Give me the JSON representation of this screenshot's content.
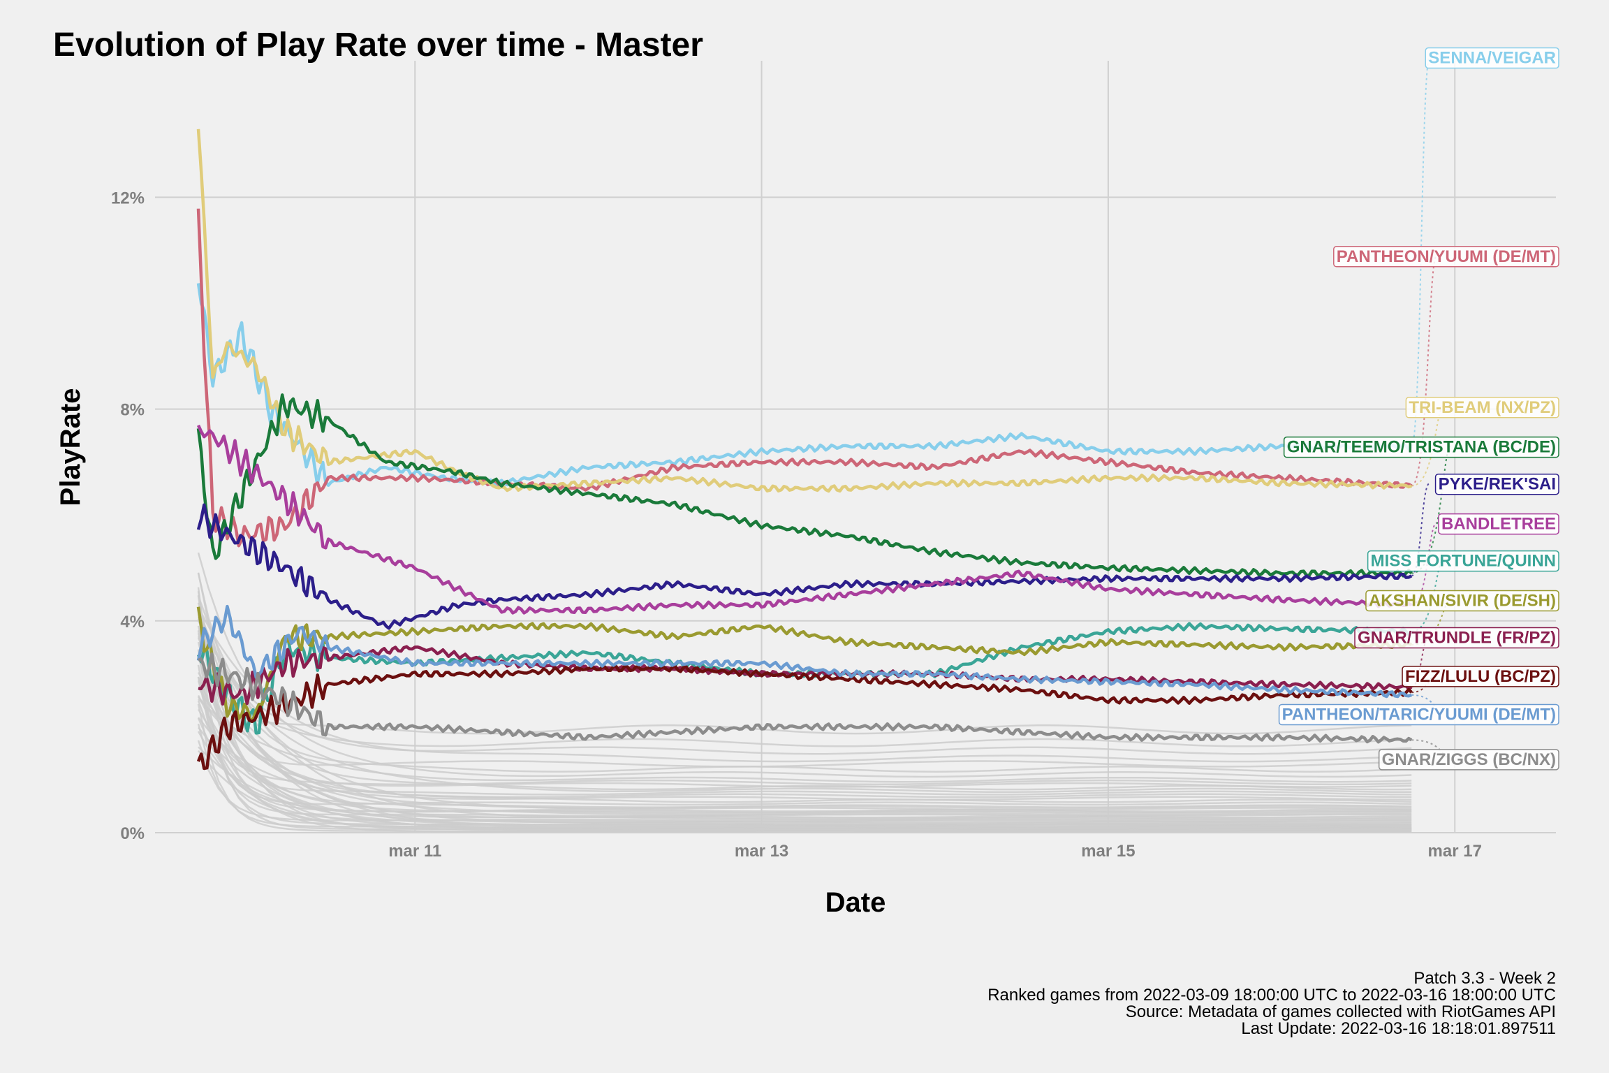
{
  "chart_data": {
    "type": "line",
    "title": "Evolution of Play Rate over time - Master",
    "xlabel": "Date",
    "ylabel": "PlayRate",
    "x_ticks": [
      "mar 11",
      "mar 13",
      "mar 15",
      "mar 17"
    ],
    "y_ticks": [
      "0%",
      "4%",
      "8%",
      "12%"
    ],
    "xlim": [
      "2022-03-09 12:00",
      "2022-03-17 14:00"
    ],
    "ylim": [
      0,
      15
    ],
    "grid": true,
    "legend": "direct-labels-right",
    "highlight_series": [
      {
        "name": "SENNA/VEIGAR",
        "color": "#87ceeb",
        "label_y": 14.65,
        "points": [
          [
            "2022-03-09 18:00",
            10.5
          ],
          [
            "2022-03-09 20:00",
            8.6
          ],
          [
            "2022-03-10 00:00",
            9.4
          ],
          [
            "2022-03-10 04:00",
            8.0
          ],
          [
            "2022-03-10 12:00",
            6.6
          ],
          [
            "2022-03-10 20:00",
            6.9
          ],
          [
            "2022-03-11 04:00",
            6.7
          ],
          [
            "2022-03-11 12:00",
            6.6
          ],
          [
            "2022-03-12 00:00",
            6.9
          ],
          [
            "2022-03-12 12:00",
            7.0
          ],
          [
            "2022-03-13 00:00",
            7.2
          ],
          [
            "2022-03-13 12:00",
            7.3
          ],
          [
            "2022-03-14 00:00",
            7.3
          ],
          [
            "2022-03-14 12:00",
            7.5
          ],
          [
            "2022-03-15 00:00",
            7.2
          ],
          [
            "2022-03-15 12:00",
            7.2
          ],
          [
            "2022-03-16 00:00",
            7.3
          ],
          [
            "2022-03-16 18:00",
            7.3
          ]
        ]
      },
      {
        "name": "PANTHEON/YUUMI (DE/MT)",
        "color": "#cd6677",
        "label_y": 10.9,
        "points": [
          [
            "2022-03-09 18:00",
            11.5
          ],
          [
            "2022-03-09 20:00",
            6.0
          ],
          [
            "2022-03-10 00:00",
            5.6
          ],
          [
            "2022-03-10 06:00",
            5.8
          ],
          [
            "2022-03-10 12:00",
            6.7
          ],
          [
            "2022-03-11 00:00",
            6.7
          ],
          [
            "2022-03-11 12:00",
            6.6
          ],
          [
            "2022-03-12 00:00",
            6.5
          ],
          [
            "2022-03-12 12:00",
            6.9
          ],
          [
            "2022-03-13 00:00",
            7.0
          ],
          [
            "2022-03-13 12:00",
            7.0
          ],
          [
            "2022-03-14 00:00",
            6.9
          ],
          [
            "2022-03-14 12:00",
            7.2
          ],
          [
            "2022-03-15 00:00",
            7.0
          ],
          [
            "2022-03-15 12:00",
            6.8
          ],
          [
            "2022-03-16 00:00",
            6.7
          ],
          [
            "2022-03-16 18:00",
            6.55
          ]
        ]
      },
      {
        "name": "TRI-BEAM (NX/PZ)",
        "color": "#e0cc7a",
        "label_y": 8.05,
        "points": [
          [
            "2022-03-09 18:00",
            13.4
          ],
          [
            "2022-03-09 20:00",
            8.6
          ],
          [
            "2022-03-09 22:00",
            9.2
          ],
          [
            "2022-03-10 02:00",
            8.8
          ],
          [
            "2022-03-10 06:00",
            7.6
          ],
          [
            "2022-03-10 12:00",
            7.0
          ],
          [
            "2022-03-11 00:00",
            7.2
          ],
          [
            "2022-03-11 06:00",
            6.8
          ],
          [
            "2022-03-11 12:00",
            6.5
          ],
          [
            "2022-03-12 00:00",
            6.6
          ],
          [
            "2022-03-12 12:00",
            6.7
          ],
          [
            "2022-03-13 00:00",
            6.5
          ],
          [
            "2022-03-13 12:00",
            6.5
          ],
          [
            "2022-03-14 00:00",
            6.6
          ],
          [
            "2022-03-14 12:00",
            6.6
          ],
          [
            "2022-03-15 00:00",
            6.7
          ],
          [
            "2022-03-15 12:00",
            6.7
          ],
          [
            "2022-03-16 00:00",
            6.6
          ],
          [
            "2022-03-16 18:00",
            6.55
          ]
        ]
      },
      {
        "name": "GNAR/TEEMO/TRISTANA (BC/DE)",
        "color": "#1a7a3a",
        "label_y": 7.3,
        "points": [
          [
            "2022-03-09 18:00",
            7.5
          ],
          [
            "2022-03-09 20:00",
            5.2
          ],
          [
            "2022-03-10 00:00",
            6.4
          ],
          [
            "2022-03-10 06:00",
            8.1
          ],
          [
            "2022-03-10 12:00",
            7.8
          ],
          [
            "2022-03-10 20:00",
            7.0
          ],
          [
            "2022-03-11 06:00",
            6.8
          ],
          [
            "2022-03-11 12:00",
            6.6
          ],
          [
            "2022-03-12 00:00",
            6.4
          ],
          [
            "2022-03-12 12:00",
            6.2
          ],
          [
            "2022-03-13 00:00",
            5.8
          ],
          [
            "2022-03-13 12:00",
            5.6
          ],
          [
            "2022-03-14 00:00",
            5.3
          ],
          [
            "2022-03-14 12:00",
            5.1
          ],
          [
            "2022-03-15 00:00",
            5.0
          ],
          [
            "2022-03-15 12:00",
            4.95
          ],
          [
            "2022-03-16 00:00",
            4.9
          ],
          [
            "2022-03-16 18:00",
            4.9
          ]
        ]
      },
      {
        "name": "PYKE/REK'SAI",
        "color": "#2c1e8a",
        "label_y": 6.6,
        "points": [
          [
            "2022-03-09 18:00",
            6.0
          ],
          [
            "2022-03-09 20:00",
            5.8
          ],
          [
            "2022-03-10 06:00",
            5.0
          ],
          [
            "2022-03-10 12:00",
            4.4
          ],
          [
            "2022-03-10 20:00",
            3.9
          ],
          [
            "2022-03-11 06:00",
            4.3
          ],
          [
            "2022-03-11 12:00",
            4.4
          ],
          [
            "2022-03-12 00:00",
            4.5
          ],
          [
            "2022-03-12 12:00",
            4.7
          ],
          [
            "2022-03-13 00:00",
            4.5
          ],
          [
            "2022-03-13 12:00",
            4.7
          ],
          [
            "2022-03-14 00:00",
            4.7
          ],
          [
            "2022-03-14 12:00",
            4.75
          ],
          [
            "2022-03-15 00:00",
            4.8
          ],
          [
            "2022-03-15 12:00",
            4.8
          ],
          [
            "2022-03-16 00:00",
            4.8
          ],
          [
            "2022-03-16 18:00",
            4.85
          ]
        ]
      },
      {
        "name": "BANDLETREE",
        "color": "#a83e9c",
        "label_y": 5.85,
        "points": [
          [
            "2022-03-09 18:00",
            7.6
          ],
          [
            "2022-03-09 20:00",
            7.5
          ],
          [
            "2022-03-10 06:00",
            6.3
          ],
          [
            "2022-03-10 12:00",
            5.5
          ],
          [
            "2022-03-11 00:00",
            5.0
          ],
          [
            "2022-03-11 12:00",
            4.2
          ],
          [
            "2022-03-12 00:00",
            4.2
          ],
          [
            "2022-03-12 12:00",
            4.3
          ],
          [
            "2022-03-13 00:00",
            4.3
          ],
          [
            "2022-03-13 12:00",
            4.5
          ],
          [
            "2022-03-14 00:00",
            4.7
          ],
          [
            "2022-03-14 12:00",
            4.9
          ],
          [
            "2022-03-15 00:00",
            4.6
          ],
          [
            "2022-03-15 12:00",
            4.5
          ],
          [
            "2022-03-16 00:00",
            4.4
          ],
          [
            "2022-03-16 18:00",
            4.3
          ]
        ]
      },
      {
        "name": "MISS FORTUNE/QUINN",
        "color": "#3aa597",
        "label_y": 5.15,
        "points": [
          [
            "2022-03-09 18:00",
            3.5
          ],
          [
            "2022-03-09 22:00",
            2.6
          ],
          [
            "2022-03-10 02:00",
            2.0
          ],
          [
            "2022-03-10 06:00",
            3.5
          ],
          [
            "2022-03-10 12:00",
            3.3
          ],
          [
            "2022-03-11 00:00",
            3.2
          ],
          [
            "2022-03-11 12:00",
            3.3
          ],
          [
            "2022-03-12 00:00",
            3.4
          ],
          [
            "2022-03-12 12:00",
            3.2
          ],
          [
            "2022-03-13 00:00",
            3.0
          ],
          [
            "2022-03-13 12:00",
            3.0
          ],
          [
            "2022-03-14 00:00",
            3.0
          ],
          [
            "2022-03-14 12:00",
            3.5
          ],
          [
            "2022-03-15 00:00",
            3.8
          ],
          [
            "2022-03-15 12:00",
            3.9
          ],
          [
            "2022-03-16 00:00",
            3.85
          ],
          [
            "2022-03-16 18:00",
            3.8
          ]
        ]
      },
      {
        "name": "AKSHAN/SIVIR (DE/SH)",
        "color": "#9a9a30",
        "label_y": 4.4,
        "points": [
          [
            "2022-03-09 18:00",
            4.0
          ],
          [
            "2022-03-09 22:00",
            2.4
          ],
          [
            "2022-03-10 02:00",
            2.2
          ],
          [
            "2022-03-10 06:00",
            3.7
          ],
          [
            "2022-03-10 12:00",
            3.7
          ],
          [
            "2022-03-11 00:00",
            3.8
          ],
          [
            "2022-03-11 12:00",
            3.9
          ],
          [
            "2022-03-12 00:00",
            3.9
          ],
          [
            "2022-03-12 12:00",
            3.7
          ],
          [
            "2022-03-13 00:00",
            3.9
          ],
          [
            "2022-03-13 12:00",
            3.6
          ],
          [
            "2022-03-14 00:00",
            3.5
          ],
          [
            "2022-03-14 12:00",
            3.4
          ],
          [
            "2022-03-15 00:00",
            3.6
          ],
          [
            "2022-03-15 12:00",
            3.55
          ],
          [
            "2022-03-16 00:00",
            3.5
          ],
          [
            "2022-03-16 18:00",
            3.55
          ]
        ]
      },
      {
        "name": "GNAR/TRUNDLE (FR/PZ)",
        "color": "#8a1f4f",
        "label_y": 3.7,
        "points": [
          [
            "2022-03-09 18:00",
            2.8
          ],
          [
            "2022-03-10 00:00",
            2.6
          ],
          [
            "2022-03-10 06:00",
            3.2
          ],
          [
            "2022-03-10 12:00",
            3.3
          ],
          [
            "2022-03-11 00:00",
            3.5
          ],
          [
            "2022-03-11 12:00",
            3.2
          ],
          [
            "2022-03-12 00:00",
            3.1
          ],
          [
            "2022-03-12 12:00",
            3.1
          ],
          [
            "2022-03-13 00:00",
            3.0
          ],
          [
            "2022-03-13 12:00",
            3.0
          ],
          [
            "2022-03-14 00:00",
            3.0
          ],
          [
            "2022-03-14 12:00",
            2.9
          ],
          [
            "2022-03-15 00:00",
            2.9
          ],
          [
            "2022-03-15 12:00",
            2.85
          ],
          [
            "2022-03-16 00:00",
            2.8
          ],
          [
            "2022-03-16 18:00",
            2.75
          ]
        ]
      },
      {
        "name": "FIZZ/LULU (BC/PZ)",
        "color": "#6b0f0f",
        "label_y": 2.97,
        "points": [
          [
            "2022-03-09 18:00",
            1.2
          ],
          [
            "2022-03-09 22:00",
            2.0
          ],
          [
            "2022-03-10 06:00",
            2.4
          ],
          [
            "2022-03-10 12:00",
            2.8
          ],
          [
            "2022-03-11 00:00",
            3.0
          ],
          [
            "2022-03-11 12:00",
            3.0
          ],
          [
            "2022-03-12 00:00",
            3.1
          ],
          [
            "2022-03-12 12:00",
            3.1
          ],
          [
            "2022-03-13 00:00",
            3.0
          ],
          [
            "2022-03-13 12:00",
            2.9
          ],
          [
            "2022-03-14 00:00",
            2.8
          ],
          [
            "2022-03-14 12:00",
            2.7
          ],
          [
            "2022-03-15 00:00",
            2.5
          ],
          [
            "2022-03-15 12:00",
            2.5
          ],
          [
            "2022-03-16 00:00",
            2.6
          ],
          [
            "2022-03-16 18:00",
            2.65
          ]
        ]
      },
      {
        "name": "PANTHEON/TARIC/YUUMI (DE/MT)",
        "color": "#6a9bd1",
        "label_y": 2.25,
        "points": [
          [
            "2022-03-09 18:00",
            3.5
          ],
          [
            "2022-03-09 22:00",
            4.1
          ],
          [
            "2022-03-10 02:00",
            3.0
          ],
          [
            "2022-03-10 08:00",
            3.8
          ],
          [
            "2022-03-10 12:00",
            3.5
          ],
          [
            "2022-03-11 00:00",
            3.2
          ],
          [
            "2022-03-11 12:00",
            3.2
          ],
          [
            "2022-03-12 00:00",
            3.2
          ],
          [
            "2022-03-12 12:00",
            3.2
          ],
          [
            "2022-03-13 00:00",
            3.2
          ],
          [
            "2022-03-13 12:00",
            3.0
          ],
          [
            "2022-03-14 00:00",
            3.0
          ],
          [
            "2022-03-14 12:00",
            2.9
          ],
          [
            "2022-03-15 00:00",
            2.85
          ],
          [
            "2022-03-15 12:00",
            2.8
          ],
          [
            "2022-03-16 00:00",
            2.7
          ],
          [
            "2022-03-16 18:00",
            2.6
          ]
        ]
      },
      {
        "name": "GNAR/ZIGGS (BC/NX)",
        "color": "#8c8c8c",
        "label_y": 1.4,
        "points": [
          [
            "2022-03-09 18:00",
            3.2
          ],
          [
            "2022-03-10 00:00",
            2.9
          ],
          [
            "2022-03-10 06:00",
            2.5
          ],
          [
            "2022-03-10 12:00",
            2.0
          ],
          [
            "2022-03-11 00:00",
            2.0
          ],
          [
            "2022-03-11 12:00",
            1.9
          ],
          [
            "2022-03-12 00:00",
            1.8
          ],
          [
            "2022-03-12 12:00",
            1.9
          ],
          [
            "2022-03-13 00:00",
            2.0
          ],
          [
            "2022-03-13 12:00",
            2.0
          ],
          [
            "2022-03-14 00:00",
            2.0
          ],
          [
            "2022-03-14 12:00",
            1.9
          ],
          [
            "2022-03-15 00:00",
            1.8
          ],
          [
            "2022-03-15 12:00",
            1.8
          ],
          [
            "2022-03-16 00:00",
            1.8
          ],
          [
            "2022-03-16 18:00",
            1.75
          ]
        ]
      }
    ],
    "background_series": {
      "color": "#cccccc",
      "end_values": [
        1.95,
        1.7,
        1.55,
        1.4,
        1.3,
        1.2,
        1.1,
        1.0,
        0.95,
        0.9,
        0.85,
        0.8,
        0.75,
        0.7,
        0.65,
        0.6,
        0.55,
        0.5,
        0.48,
        0.45,
        0.42,
        0.4,
        0.38,
        0.35,
        0.33,
        0.3,
        0.28,
        0.26,
        0.24,
        0.22,
        0.2,
        0.18,
        0.16,
        0.15,
        0.14,
        0.12,
        0.11,
        0.1,
        0.09,
        0.08,
        0.07,
        0.06,
        0.05,
        0.04,
        0.03,
        0.02
      ]
    },
    "caption": [
      "Patch 3.3 - Week 2",
      "Ranked games from 2022-03-09 18:00:00 UTC to 2022-03-16 18:00:00 UTC",
      "Source: Metadata of games collected with RiotGames API",
      "Last Update: 2022-03-16 18:18:01.897511"
    ]
  }
}
